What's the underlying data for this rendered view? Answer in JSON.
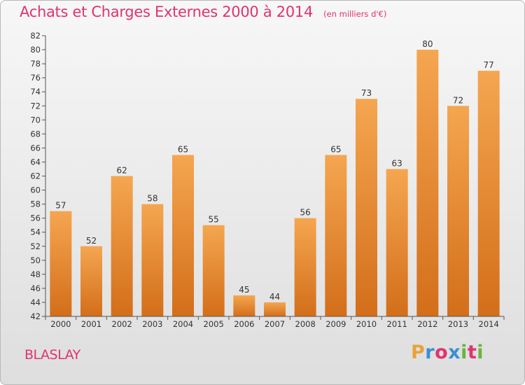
{
  "header": {
    "title": "Achats et Charges Externes 2000 à 2014",
    "subtitle": "(en milliers d'€)"
  },
  "footer": {
    "place": "BLASLAY",
    "logo_text": "Proxiti"
  },
  "colors": {
    "title": "#e0336f",
    "bar_top": "#f5a650",
    "bar_bottom": "#d36e1a",
    "axis_text": "#333333"
  },
  "chart_data": {
    "type": "bar",
    "title": "Achats et Charges Externes 2000 à 2014",
    "subtitle": "(en milliers d'€)",
    "xlabel": "",
    "ylabel": "",
    "categories": [
      "2000",
      "2001",
      "2002",
      "2003",
      "2004",
      "2005",
      "2006",
      "2007",
      "2008",
      "2009",
      "2010",
      "2011",
      "2012",
      "2013",
      "2014"
    ],
    "values": [
      57,
      52,
      62,
      58,
      65,
      55,
      45,
      44,
      56,
      65,
      73,
      63,
      80,
      72,
      77
    ],
    "ylim": [
      42,
      82
    ],
    "yticks": [
      42,
      44,
      46,
      48,
      50,
      52,
      54,
      56,
      58,
      60,
      62,
      64,
      66,
      68,
      70,
      72,
      74,
      76,
      78,
      80,
      82
    ],
    "grid": false,
    "data_labels": true
  }
}
